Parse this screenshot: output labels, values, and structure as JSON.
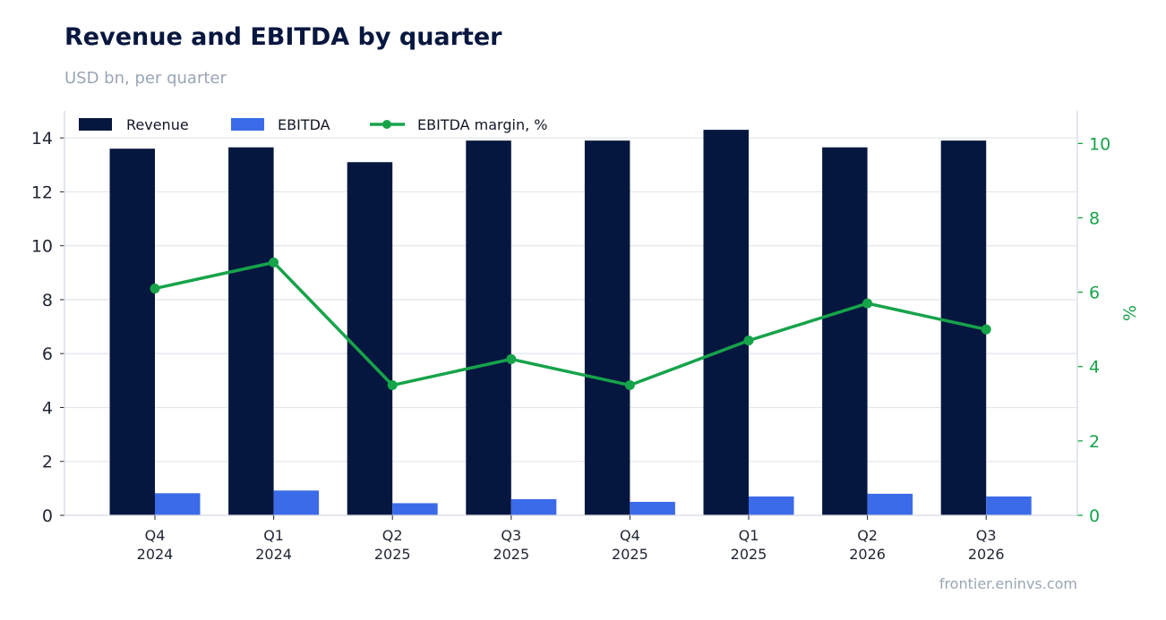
{
  "header": {
    "title": "Revenue and EBITDA by quarter",
    "subtitle": "USD bn, per quarter"
  },
  "footer": {
    "source": "frontier.eninvs.com"
  },
  "colors": {
    "revenue": "#06173f",
    "ebitda": "#3b6be8",
    "margin": "#16a34a",
    "grid": "#e3e7ee",
    "axis": "#d5dae3"
  },
  "chart_data": {
    "type": "bar",
    "title": "Revenue and EBITDA by quarter",
    "subtitle": "USD bn, per quarter",
    "categories": [
      [
        "Q4",
        "2024"
      ],
      [
        "Q1",
        "2024"
      ],
      [
        "Q2",
        "2025"
      ],
      [
        "Q3",
        "2025"
      ],
      [
        "Q4",
        "2025"
      ],
      [
        "Q1",
        "2025"
      ],
      [
        "Q2",
        "2026"
      ],
      [
        "Q3",
        "2026"
      ]
    ],
    "series": [
      {
        "name": "Revenue",
        "type": "bar",
        "axis": "left",
        "values": [
          13.6,
          13.65,
          13.1,
          13.9,
          13.9,
          14.3,
          13.65,
          13.9
        ]
      },
      {
        "name": "EBITDA",
        "type": "bar",
        "axis": "left",
        "values": [
          0.82,
          0.92,
          0.45,
          0.6,
          0.5,
          0.7,
          0.8,
          0.7
        ]
      },
      {
        "name": "EBITDA margin, %",
        "type": "line",
        "axis": "right",
        "values": [
          6.1,
          6.8,
          3.5,
          4.2,
          3.5,
          4.7,
          5.7,
          5.0
        ]
      }
    ],
    "y_left": {
      "label": "",
      "range": [
        0,
        15
      ],
      "ticks": [
        0,
        2,
        4,
        6,
        8,
        10,
        12,
        14
      ]
    },
    "y_right": {
      "label": "%",
      "range": [
        0,
        10.875
      ],
      "ticks": [
        0,
        2,
        4,
        6,
        8,
        10
      ]
    },
    "grid": true,
    "legend": "top-left"
  }
}
